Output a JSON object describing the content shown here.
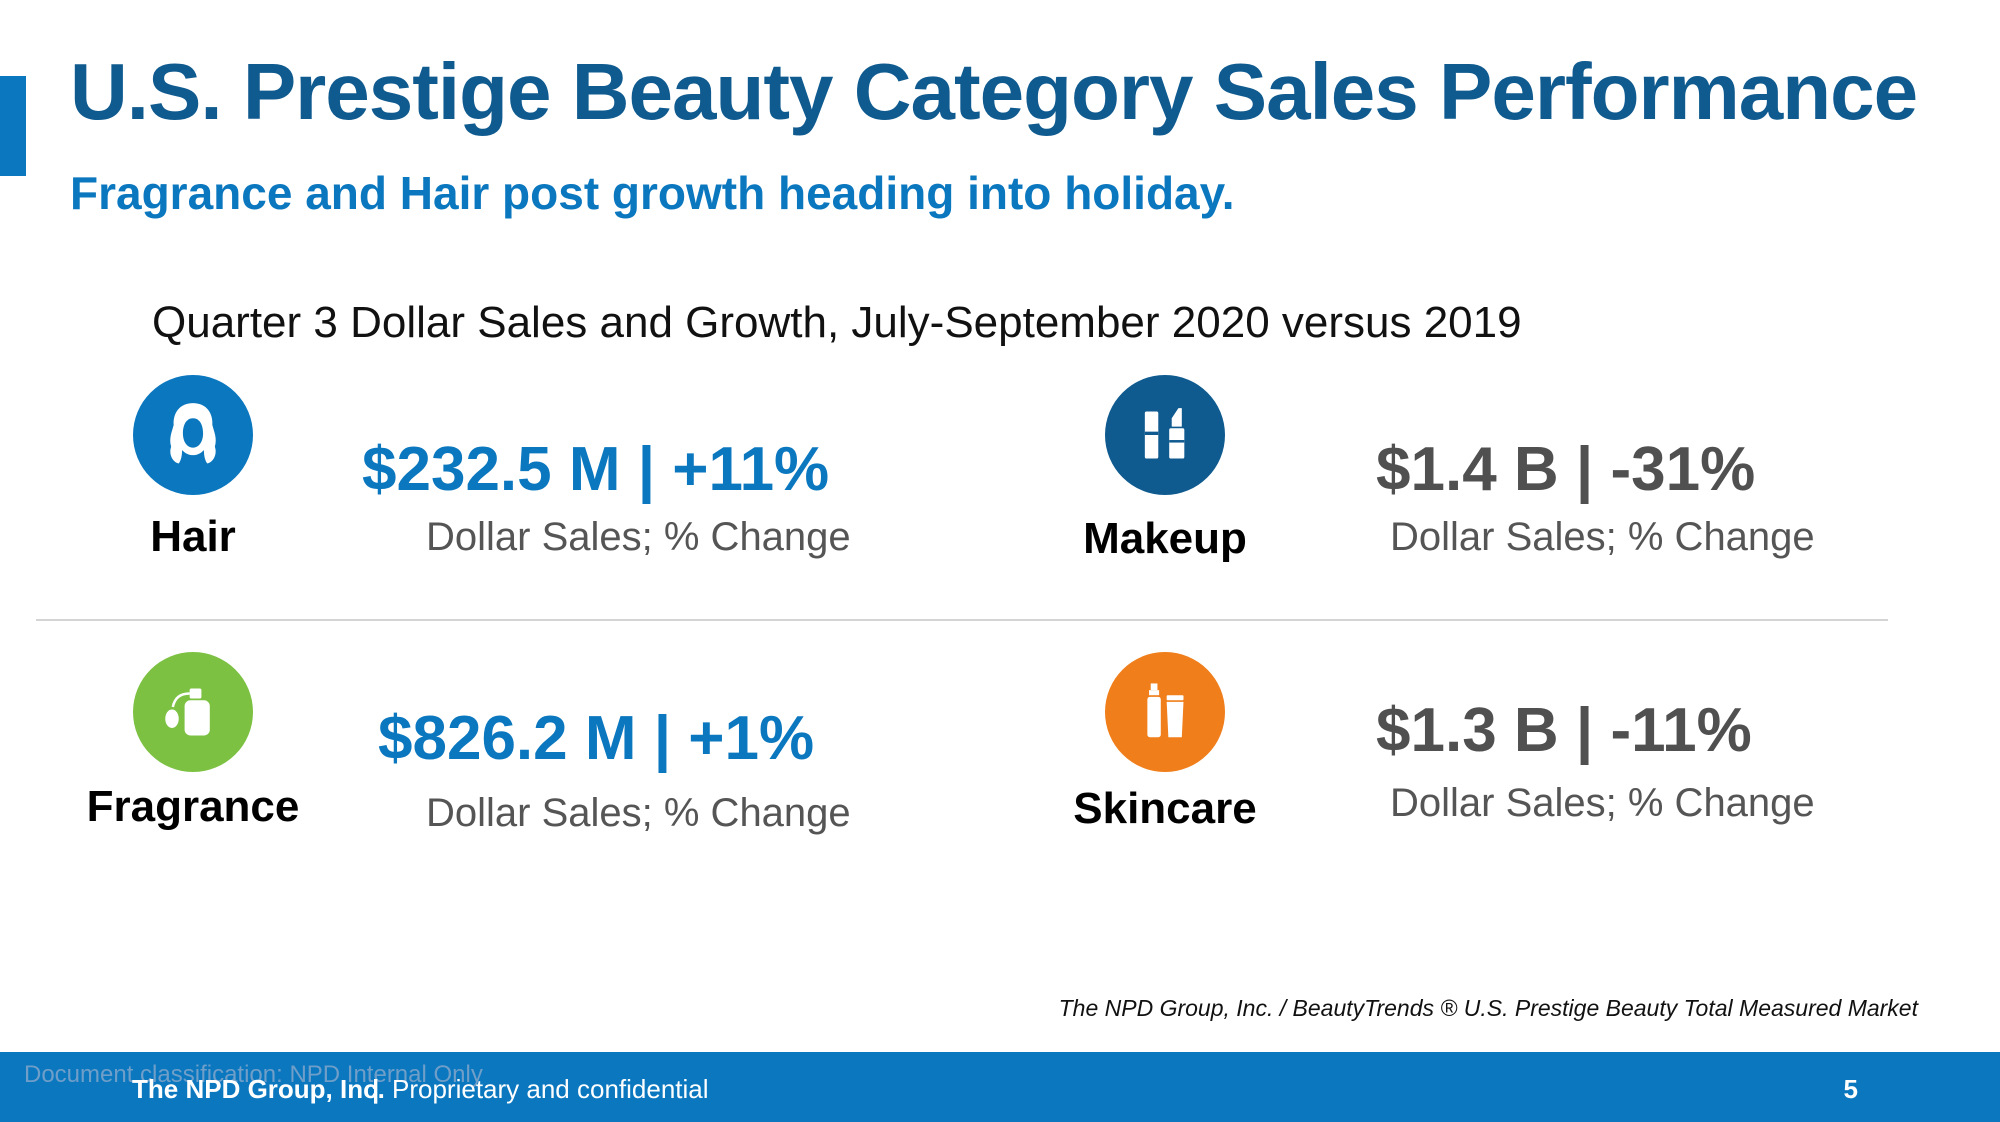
{
  "slide": {
    "title": "U.S. Prestige Beauty Category Sales Performance",
    "subtitle": "Fragrance and Hair post growth heading into holiday.",
    "section_heading": "Quarter 3 Dollar Sales and Growth, July-September 2020 versus 2019"
  },
  "categories": [
    {
      "name": "Hair",
      "metric": "$232.5 M | +11%",
      "caption": "Dollar Sales; % Change",
      "icon": "hair-icon",
      "color": "#0A77BF"
    },
    {
      "name": "Makeup",
      "metric": "$1.4 B | -31%",
      "caption": "Dollar Sales; % Change",
      "icon": "lipstick-icon",
      "color": "#0F5A8F"
    },
    {
      "name": "Fragrance",
      "metric": "$826.2 M | +1%",
      "caption": "Dollar Sales; % Change",
      "icon": "perfume-icon",
      "color": "#7CC142"
    },
    {
      "name": "Skincare",
      "metric": "$1.3 B | -11%",
      "caption": "Dollar Sales; % Change",
      "icon": "skincare-bottles-icon",
      "color": "#F07E1A"
    }
  ],
  "source": "The NPD Group, Inc. / BeautyTrends ® U.S. Prestige Beauty Total Measured Market",
  "footer": {
    "classification": "Document classification: NPD Internal Only",
    "company": "The NPD Group, Inc.",
    "separator": "|",
    "confidential": "Proprietary and confidential",
    "page_number": "5"
  },
  "colors": {
    "title": "#0F5A8F",
    "accent": "#0A77BF",
    "negative_metric": "#505050"
  }
}
